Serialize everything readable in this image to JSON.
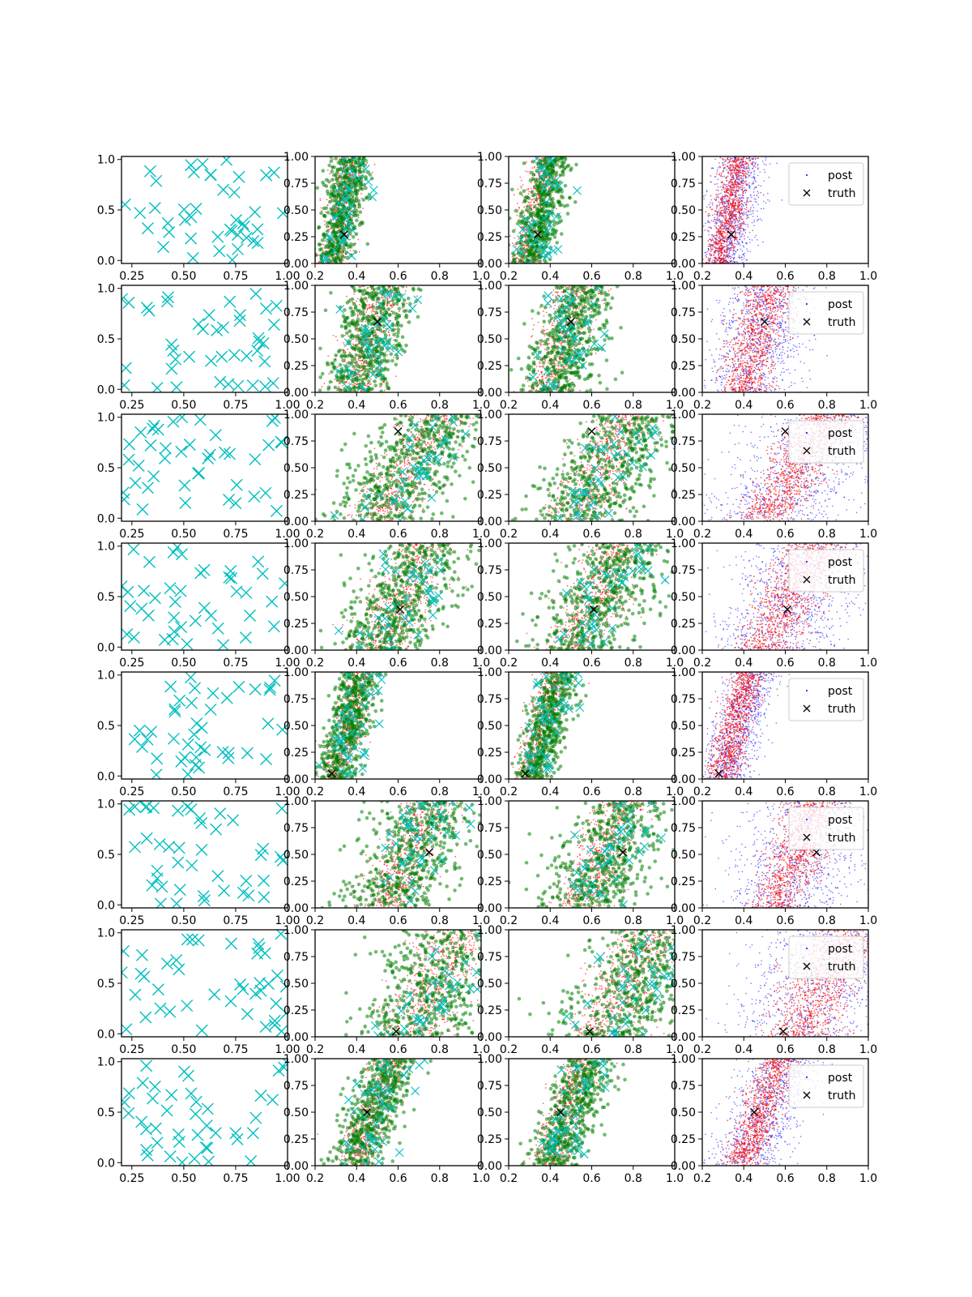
{
  "colors": {
    "scatter_cyan": "#00bfbf",
    "sample_red": "#ff0000",
    "sample_green": "#008000",
    "post_blue": "#0000ff",
    "truth_black": "#000000",
    "axes": "#000000",
    "background": "#ffffff"
  },
  "chart_data": {
    "type": "scatter",
    "grid": false,
    "layout": "8 rows x 4 columns of panels",
    "x_ticks_col0": [
      "0.25",
      "0.50",
      "0.75",
      "1.00"
    ],
    "x_ticks_other": [
      "0.2",
      "0.4",
      "0.6",
      "0.8",
      "1.0"
    ],
    "y_ticks_col0": [
      "0.0",
      "0.5",
      "1.0"
    ],
    "y_ticks_other": [
      "0.00",
      "0.25",
      "0.50",
      "0.75",
      "1.00"
    ],
    "xlim_col0": [
      0.2,
      1.0
    ],
    "ylim_col0": [
      -0.03,
      1.03
    ],
    "xlim": [
      0.2,
      1.0
    ],
    "ylim": [
      0.0,
      1.0
    ],
    "legend": {
      "placement": "upper right",
      "entries": [
        "post",
        "truth"
      ]
    },
    "rows": [
      {
        "truth": [
          0.34,
          0.27
        ],
        "band": {
          "center": 0.33,
          "slope": 0.1,
          "width": 0.05
        },
        "spread": 0.07
      },
      {
        "truth": [
          0.5,
          0.66
        ],
        "band": {
          "center": 0.46,
          "slope": 0.14,
          "width": 0.08
        },
        "spread": 0.12
      },
      {
        "truth": [
          0.6,
          0.84
        ],
        "band": {
          "center": 0.65,
          "slope": 0.3,
          "width": 0.1
        },
        "spread": 0.2
      },
      {
        "truth": [
          0.61,
          0.38
        ],
        "band": {
          "center": 0.62,
          "slope": 0.24,
          "width": 0.1
        },
        "spread": 0.18
      },
      {
        "truth": [
          0.28,
          0.05
        ],
        "band": {
          "center": 0.36,
          "slope": 0.14,
          "width": 0.05
        },
        "spread": 0.07
      },
      {
        "truth": [
          0.75,
          0.52
        ],
        "band": {
          "center": 0.65,
          "slope": 0.2,
          "width": 0.09
        },
        "spread": 0.18
      },
      {
        "truth": [
          0.59,
          0.05
        ],
        "band": {
          "center": 0.78,
          "slope": 0.25,
          "width": 0.12
        },
        "spread": 0.22
      },
      {
        "truth": [
          0.45,
          0.5
        ],
        "band": {
          "center": 0.48,
          "slope": 0.18,
          "width": 0.06
        },
        "spread": 0.1
      }
    ]
  }
}
